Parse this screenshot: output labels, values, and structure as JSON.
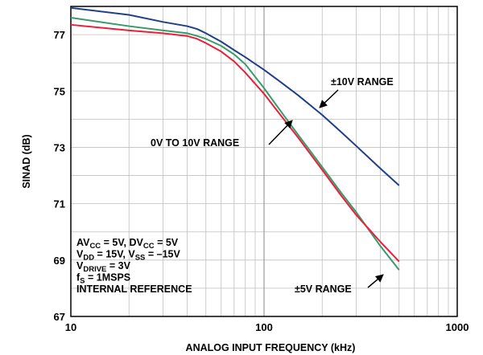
{
  "chart_data": {
    "type": "line",
    "xlabel": "ANALOG INPUT FREQUENCY (kHz)",
    "ylabel": "SINAD (dB)",
    "xscale": "log",
    "xlim": [
      10,
      1000
    ],
    "ylim": [
      67,
      78
    ],
    "x_ticks": [
      10,
      100,
      1000
    ],
    "x_tick_labels": [
      "10",
      "100",
      "1000"
    ],
    "y_ticks": [
      67,
      69,
      71,
      73,
      75,
      77
    ],
    "y_tick_labels": [
      "67",
      "69",
      "71",
      "73",
      "75",
      "77"
    ],
    "grid": true,
    "series": [
      {
        "name": "±10V RANGE",
        "color": "#1f3f8a",
        "x": [
          10,
          20,
          30,
          40,
          45,
          50,
          60,
          70,
          80,
          100,
          120,
          150,
          200,
          250,
          300,
          400,
          500
        ],
        "y": [
          77.95,
          77.7,
          77.45,
          77.3,
          77.2,
          77.05,
          76.75,
          76.45,
          76.2,
          75.75,
          75.35,
          74.85,
          74.15,
          73.55,
          73.05,
          72.25,
          71.65
        ]
      },
      {
        "name": "0V TO 10V RANGE",
        "color": "#e8203a",
        "x": [
          10,
          20,
          30,
          40,
          45,
          50,
          60,
          70,
          80,
          100,
          120,
          150,
          200,
          250,
          300,
          400,
          500
        ],
        "y": [
          77.35,
          77.15,
          77.05,
          76.95,
          76.85,
          76.7,
          76.4,
          76.05,
          75.65,
          74.9,
          74.2,
          73.35,
          72.2,
          71.3,
          70.6,
          69.65,
          68.95
        ]
      },
      {
        "name": "±5V RANGE",
        "color": "#3a9a6a",
        "x": [
          10,
          20,
          30,
          40,
          45,
          50,
          60,
          70,
          80,
          100,
          120,
          150,
          200,
          250,
          300,
          400,
          500
        ],
        "y": [
          77.6,
          77.3,
          77.15,
          77.05,
          76.95,
          76.85,
          76.6,
          76.3,
          75.95,
          75.1,
          74.35,
          73.45,
          72.3,
          71.4,
          70.7,
          69.5,
          68.65
        ]
      }
    ],
    "annotations": [
      {
        "id": "ann-10v",
        "text": "±10V RANGE",
        "x": 185,
        "y": 74.05
      },
      {
        "id": "ann-0to10v",
        "text": "0V TO 10V RANGE",
        "x": 165,
        "y": 73.45
      },
      {
        "id": "ann-5v",
        "text": "±5V RANGE",
        "x": 410,
        "y": 69.25
      }
    ],
    "conditions": [
      {
        "id": "cond-avcc",
        "parts": [
          [
            "AV",
            ""
          ],
          [
            "CC",
            "sub"
          ],
          [
            " = 5V, DV",
            ""
          ],
          [
            "CC",
            "sub"
          ],
          [
            " = 5V",
            ""
          ]
        ]
      },
      {
        "id": "cond-vdd",
        "parts": [
          [
            "V",
            ""
          ],
          [
            "DD",
            "sub"
          ],
          [
            " = 15V, V",
            ""
          ],
          [
            "SS",
            "sub"
          ],
          [
            " = –15V",
            ""
          ]
        ]
      },
      {
        "id": "cond-vdrive",
        "parts": [
          [
            "V",
            ""
          ],
          [
            "DRIVE",
            "sub"
          ],
          [
            " = 3V",
            ""
          ]
        ]
      },
      {
        "id": "cond-fs",
        "parts": [
          [
            "f",
            ""
          ],
          [
            "S",
            "sub"
          ],
          [
            " = 1MSPS",
            ""
          ]
        ]
      },
      {
        "id": "cond-ref",
        "parts": [
          [
            "INTERNAL REFERENCE",
            ""
          ]
        ]
      }
    ]
  }
}
